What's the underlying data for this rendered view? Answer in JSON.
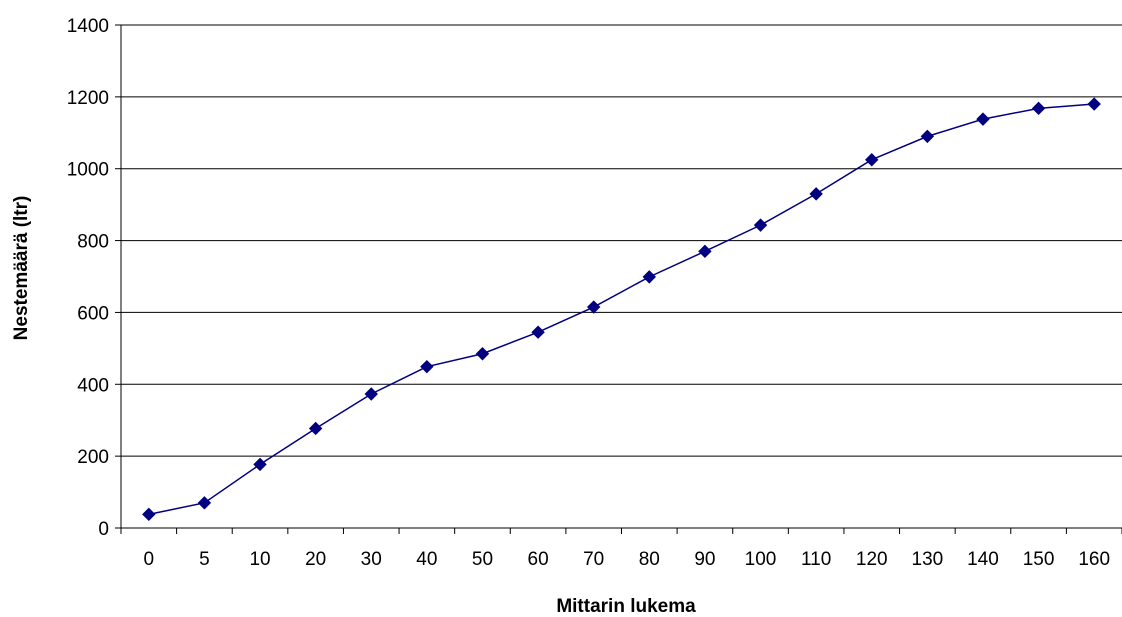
{
  "chart_data": {
    "type": "line",
    "xlabel": "Mittarin lukema",
    "ylabel": "Nestemäärä (ltr)",
    "categories": [
      "0",
      "5",
      "10",
      "20",
      "30",
      "40",
      "50",
      "60",
      "70",
      "80",
      "90",
      "100",
      "110",
      "120",
      "130",
      "140",
      "150",
      "160"
    ],
    "series": [
      {
        "values": [
          38,
          70,
          177,
          277,
          373,
          449,
          485,
          545,
          615,
          699,
          770,
          843,
          930,
          1025,
          1090,
          1138,
          1168,
          1180
        ]
      }
    ],
    "ylim": [
      0,
      1400
    ],
    "yticks": [
      "0",
      "200",
      "400",
      "600",
      "800",
      "1000",
      "1200",
      "1400"
    ],
    "grid": true,
    "legend": "none",
    "colors": {
      "series": "#000080",
      "grid": "#000000",
      "axis": "#000000"
    }
  }
}
